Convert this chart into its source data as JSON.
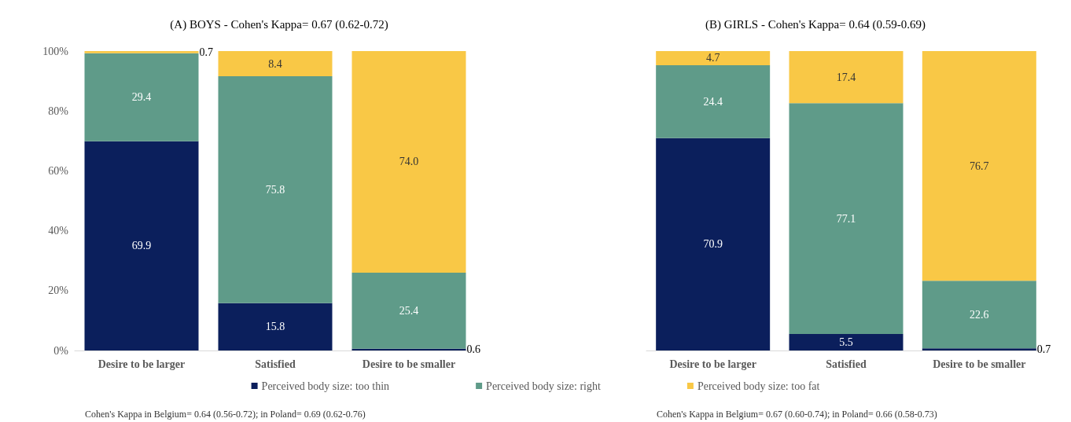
{
  "chart_data": [
    {
      "type": "bar",
      "title": "(A) BOYS - Cohen's Kappa= 0.67 (0.62-0.72)",
      "categories": [
        "Desire to be larger",
        "Satisfied",
        "Desire to be smaller"
      ],
      "stacked": true,
      "ylim": [
        0,
        100
      ],
      "yticks": [
        {
          "value": 0,
          "label": "0%"
        },
        {
          "value": 20,
          "label": "20%"
        },
        {
          "value": 40,
          "label": "40%"
        },
        {
          "value": 60,
          "label": "60%"
        },
        {
          "value": 80,
          "label": "80%"
        },
        {
          "value": 100,
          "label": "100%"
        }
      ],
      "grid": false,
      "legend": "bottom",
      "series": [
        {
          "name": "Perceived body size: too thin",
          "color": "#0b1f5c",
          "values": [
            69.9,
            15.8,
            0.6
          ],
          "value_labels": [
            "69.9",
            "15.8",
            "0.6"
          ]
        },
        {
          "name": "Perceived body size: right",
          "color": "#5f9b89",
          "values": [
            29.4,
            75.8,
            25.4
          ],
          "value_labels": [
            "29.4",
            "75.8",
            "25.4"
          ]
        },
        {
          "name": "Perceived body size: too fat",
          "color": "#f9c846",
          "values": [
            0.7,
            8.4,
            74.0
          ],
          "value_labels": [
            "0.7",
            "8.4",
            "74.0"
          ]
        }
      ],
      "annotations": [
        "Cohen's Kappa in Belgium= 0.64 (0.56-0.72); in Poland= 0.69 (0.62-0.76)"
      ]
    },
    {
      "type": "bar",
      "title": "(B) GIRLS - Cohen's Kappa= 0.64 (0.59-0.69)",
      "categories": [
        "Desire to be larger",
        "Satisfied",
        "Desire to be smaller"
      ],
      "stacked": true,
      "ylim": [
        0,
        100
      ],
      "grid": false,
      "legend": false,
      "tick_labels": "x",
      "series": [
        {
          "color": "#0b1f5c",
          "values": [
            70.9,
            5.5,
            0.7
          ],
          "value_labels": [
            "70.9",
            "5.5",
            "0.7"
          ]
        },
        {
          "color": "#5f9b89",
          "values": [
            24.4,
            77.1,
            22.6
          ],
          "value_labels": [
            "24.4",
            "77.1",
            "22.6"
          ]
        },
        {
          "color": "#f9c846",
          "values": [
            4.7,
            17.4,
            76.7
          ],
          "value_labels": [
            "4.7",
            "17.4",
            "76.7"
          ]
        }
      ],
      "annotations": [
        "Cohen's Kappa in Belgium= 0.67 (0.60-0.74); in Poland= 0.66 (0.58-0.73)"
      ]
    }
  ]
}
